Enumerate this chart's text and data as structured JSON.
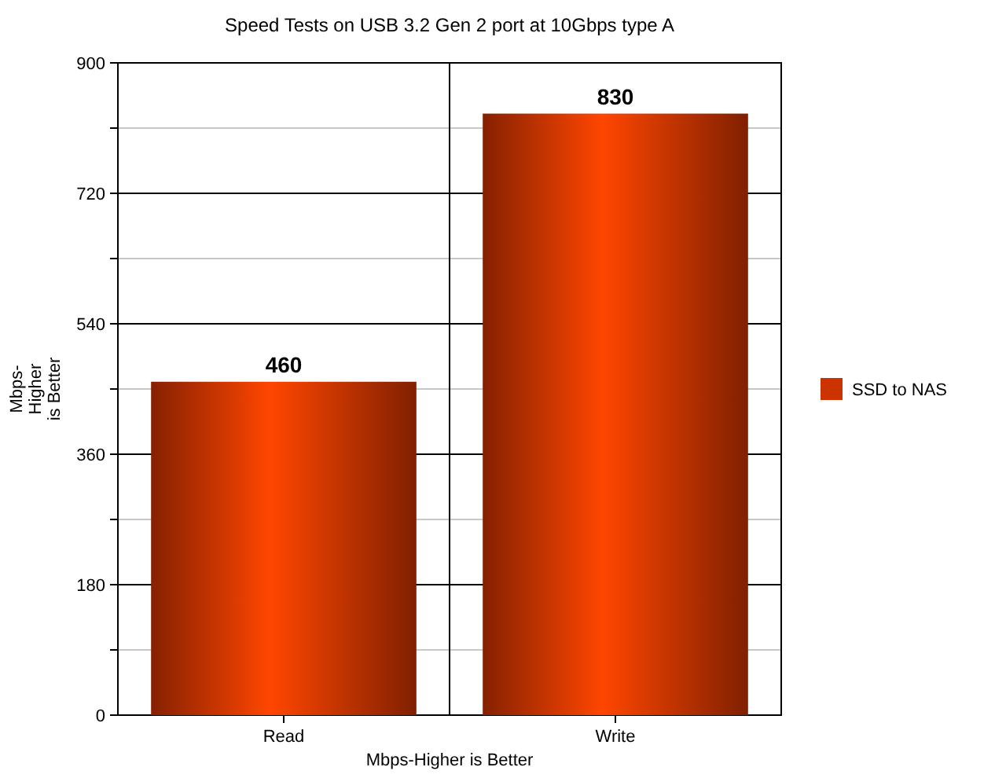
{
  "chart_data": {
    "type": "bar",
    "title": "Speed Tests on USB 3.2 Gen 2 port at 10Gbps type A",
    "xlabel": "Mbps-Higher is Better",
    "ylabel": "Mbps-\nHigher\nis Better",
    "categories": [
      "Read",
      "Write"
    ],
    "series": [
      {
        "name": "SSD to NAS",
        "color": "#cc3300",
        "values": [
          460,
          830
        ]
      }
    ],
    "ylim": [
      0,
      900
    ],
    "yticks": [
      0,
      {
        "value": 90,
        "label": null
      },
      180,
      {
        "value": 270,
        "label": null
      },
      360,
      {
        "value": 450,
        "label": null
      },
      540,
      {
        "value": 630,
        "label": null
      },
      720,
      {
        "value": 810,
        "label": null
      },
      900
    ],
    "grid": true,
    "legend": "right",
    "data_labels": true
  }
}
